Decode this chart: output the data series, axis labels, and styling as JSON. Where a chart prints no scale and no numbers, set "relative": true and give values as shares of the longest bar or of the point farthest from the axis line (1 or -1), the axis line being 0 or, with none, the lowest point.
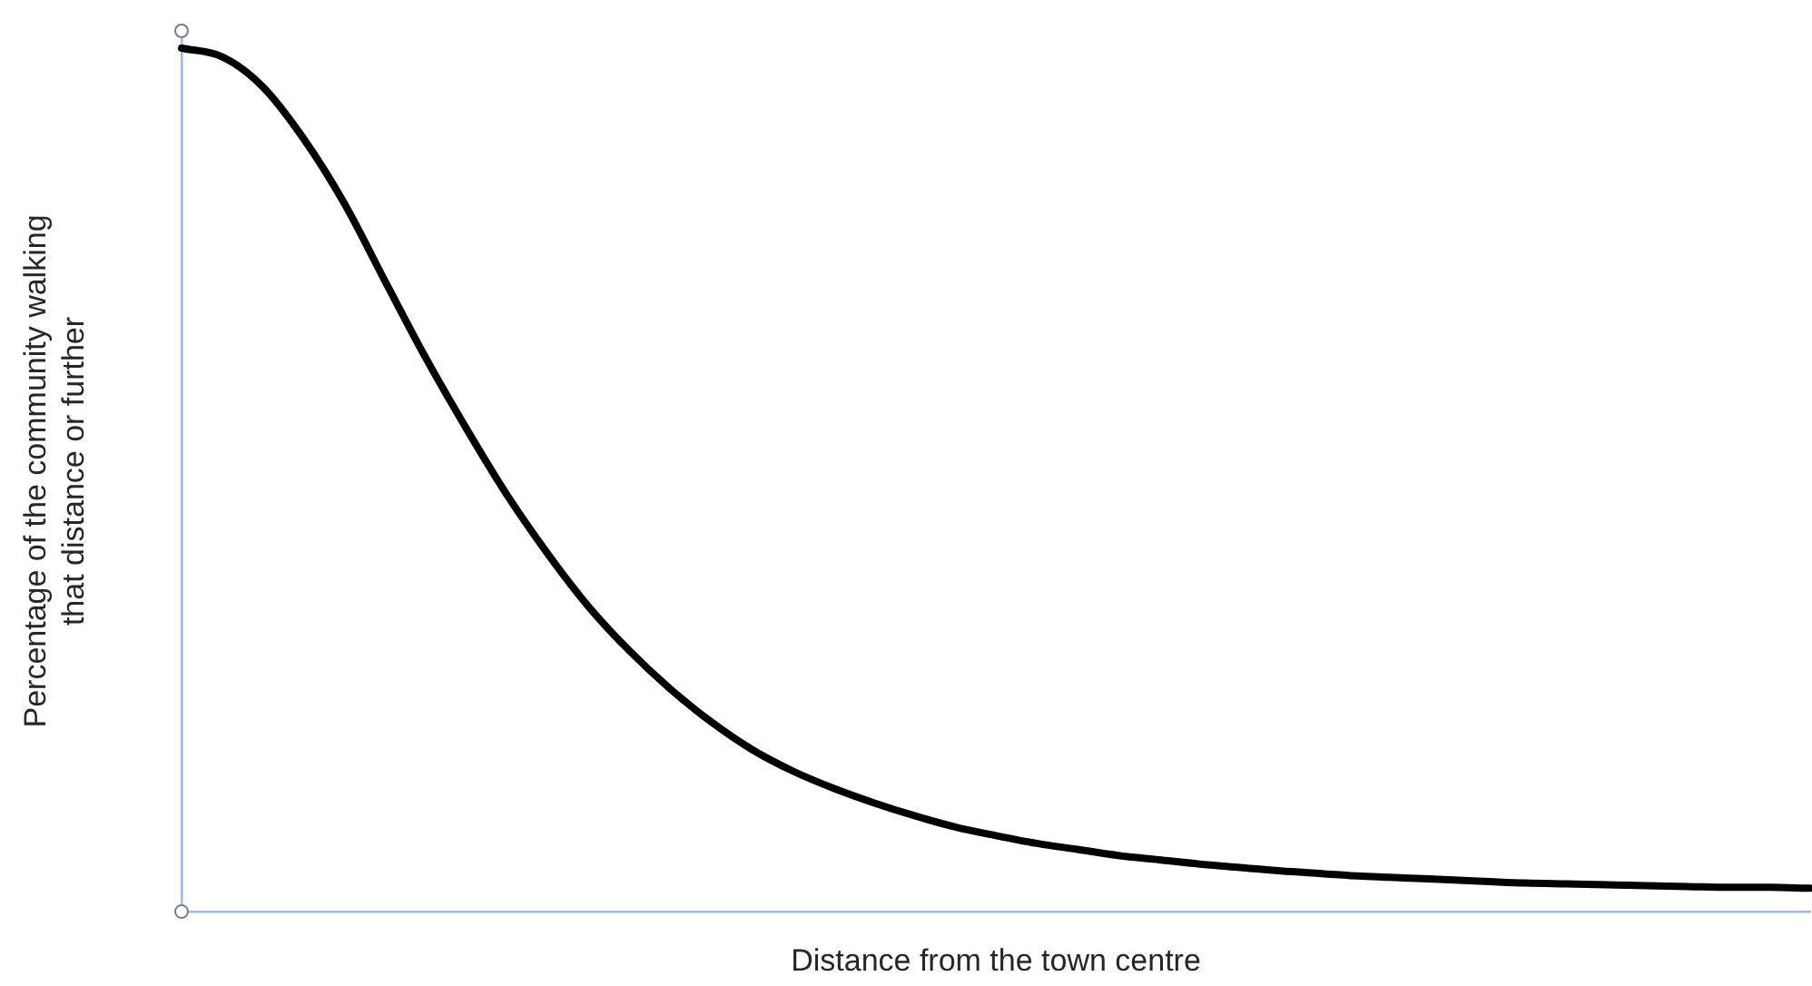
{
  "chart_data": {
    "type": "line",
    "xlabel": "Distance from the town centre",
    "ylabel": "Percentage of the community walking that distance or further",
    "categories": [
      null,
      null,
      null,
      null,
      null,
      null,
      null,
      null,
      null,
      null,
      null,
      null,
      null,
      null,
      null,
      null,
      null,
      null,
      null,
      null,
      null,
      null,
      null,
      null,
      null,
      null,
      null,
      null,
      null,
      null,
      null,
      null,
      null,
      null,
      null,
      null,
      null,
      null,
      null,
      null,
      null
    ],
    "relative": true,
    "series": [
      {
        "color": "#000000",
        "values": [
          1,
          0.99,
          0.955,
          0.895,
          0.82,
          0.73,
          0.641,
          0.559,
          0.482,
          0.414,
          0.353,
          0.302,
          0.258,
          0.22,
          0.188,
          0.163,
          0.143,
          0.126,
          0.111,
          0.098,
          0.088,
          0.079,
          0.072,
          0.065,
          0.06,
          0.055,
          0.051,
          0.047,
          0.044,
          0.041,
          0.039,
          0.037,
          0.035,
          0.033,
          0.032,
          0.031,
          0.03,
          0.029,
          0.028,
          0.028,
          0.027
        ]
      }
    ],
    "grid": false,
    "legend": false,
    "marker": "none",
    "line_style": "solid"
  }
}
